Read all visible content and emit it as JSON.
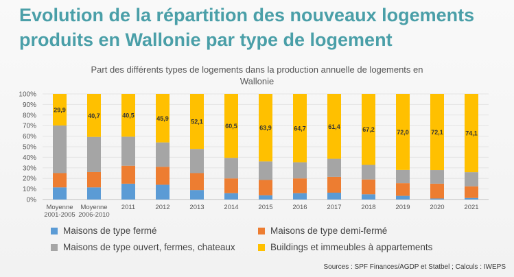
{
  "headline": "Evolution de la répartition des nouveaux logements produits en Wallonie par type de logement",
  "source": "Sources : SPF Finances/AGDP et Statbel ; Calculs : IWEPS",
  "chart_data": {
    "type": "bar",
    "stacked": true,
    "title_lines": [
      "Part des différents types de logements dans la production annuelle de logements en",
      "Wallonie"
    ],
    "categories": [
      [
        "Moyenne",
        "2001-2005"
      ],
      [
        "Moyenne",
        "2006-2010"
      ],
      [
        "2011"
      ],
      [
        "2012"
      ],
      [
        "2013"
      ],
      [
        "2014"
      ],
      [
        "2015"
      ],
      [
        "2016"
      ],
      [
        "2017"
      ],
      [
        "2018"
      ],
      [
        "2019"
      ],
      [
        "2020"
      ],
      [
        "2021"
      ]
    ],
    "y_ticks": [
      "0%",
      "10%",
      "20%",
      "30%",
      "40%",
      "50%",
      "60%",
      "70%",
      "80%",
      "90%",
      "100%"
    ],
    "ylim": [
      0,
      100
    ],
    "legend_position": "bottom",
    "series": [
      {
        "name": "Maisons de type fermé",
        "color": "#5b9bd5",
        "values": [
          11.5,
          11.5,
          15,
          14,
          9,
          6,
          4,
          6,
          6.5,
          5,
          3.5,
          1,
          1.5
        ]
      },
      {
        "name": "Maisons de type demi-fermé",
        "color": "#ed7d31",
        "values": [
          13.5,
          14.5,
          17,
          17,
          16,
          14,
          14.5,
          14,
          15,
          14,
          12,
          14,
          11
        ]
      },
      {
        "name": "Maisons de type ouvert, fermes, chateaux",
        "color": "#a5a5a5",
        "values": [
          45.1,
          33.3,
          27.5,
          23.1,
          22.9,
          19.5,
          17.6,
          15.3,
          17.1,
          13.8,
          12.5,
          12.9,
          13.4
        ]
      },
      {
        "name": "Buildings et immeubles à appartements",
        "color": "#ffc000",
        "values": [
          29.9,
          40.7,
          40.5,
          45.9,
          52.1,
          60.5,
          63.9,
          64.7,
          61.4,
          67.2,
          72.0,
          72.1,
          74.1
        ]
      }
    ],
    "data_labels": [
      "29,9",
      "40,7",
      "40,5",
      "45,9",
      "52,1",
      "60,5",
      "63,9",
      "64,7",
      "61,4",
      "67,2",
      "72,0",
      "72,1",
      "74,1"
    ]
  }
}
